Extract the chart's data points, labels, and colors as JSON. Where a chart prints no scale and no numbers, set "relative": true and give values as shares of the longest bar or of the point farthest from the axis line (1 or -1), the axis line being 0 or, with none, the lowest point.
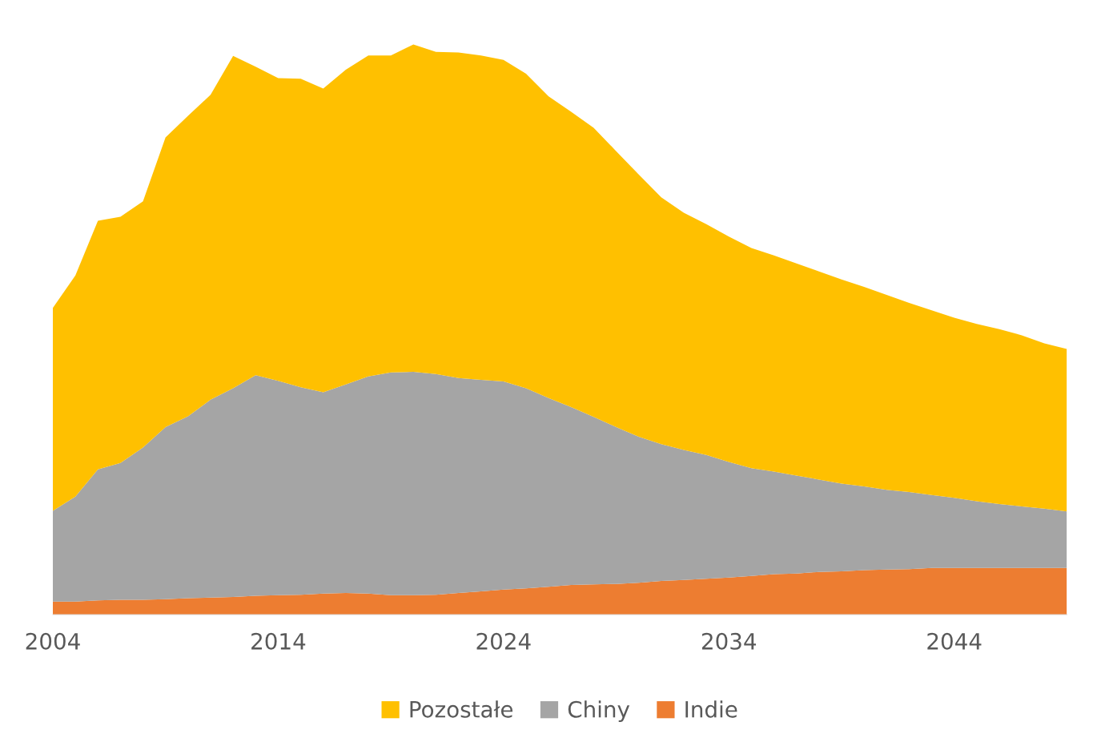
{
  "chart_data": {
    "type": "area",
    "stacked": true,
    "relative": true,
    "x": [
      2004,
      2005,
      2006,
      2007,
      2008,
      2009,
      2010,
      2011,
      2012,
      2013,
      2014,
      2015,
      2016,
      2017,
      2018,
      2019,
      2020,
      2021,
      2022,
      2023,
      2024,
      2025,
      2026,
      2027,
      2028,
      2029,
      2030,
      2031,
      2032,
      2033,
      2034,
      2035,
      2036,
      2037,
      2038,
      2039,
      2040,
      2041,
      2042,
      2043,
      2044,
      2045,
      2046,
      2047,
      2048,
      2049
    ],
    "xlim": [
      2004,
      2049
    ],
    "xticks": [
      2004,
      2014,
      2024,
      2034,
      2044
    ],
    "grid": false,
    "legend": "bottom",
    "series": [
      {
        "name": "Indie",
        "color": "#ed7d31",
        "values": [
          0.023,
          0.023,
          0.025,
          0.026,
          0.026,
          0.027,
          0.029,
          0.03,
          0.031,
          0.033,
          0.034,
          0.035,
          0.037,
          0.038,
          0.037,
          0.034,
          0.034,
          0.035,
          0.038,
          0.041,
          0.044,
          0.046,
          0.049,
          0.052,
          0.053,
          0.054,
          0.056,
          0.059,
          0.061,
          0.063,
          0.065,
          0.068,
          0.071,
          0.072,
          0.075,
          0.076,
          0.078,
          0.079,
          0.08,
          0.082,
          0.082,
          0.082,
          0.082,
          0.082,
          0.082,
          0.082
        ]
      },
      {
        "name": "Chiny",
        "color": "#a5a5a5",
        "values": [
          0.159,
          0.184,
          0.23,
          0.24,
          0.267,
          0.302,
          0.319,
          0.347,
          0.366,
          0.387,
          0.376,
          0.364,
          0.353,
          0.366,
          0.381,
          0.391,
          0.392,
          0.387,
          0.377,
          0.371,
          0.365,
          0.351,
          0.331,
          0.312,
          0.294,
          0.275,
          0.256,
          0.24,
          0.228,
          0.217,
          0.203,
          0.189,
          0.18,
          0.172,
          0.162,
          0.154,
          0.147,
          0.14,
          0.135,
          0.128,
          0.123,
          0.117,
          0.112,
          0.108,
          0.104,
          0.099
        ]
      },
      {
        "name": "Pozostałe",
        "color": "#ffc000",
        "values": [
          0.356,
          0.388,
          0.436,
          0.432,
          0.432,
          0.508,
          0.527,
          0.535,
          0.583,
          0.541,
          0.531,
          0.541,
          0.533,
          0.552,
          0.563,
          0.556,
          0.574,
          0.565,
          0.571,
          0.569,
          0.564,
          0.552,
          0.529,
          0.518,
          0.507,
          0.484,
          0.46,
          0.433,
          0.416,
          0.405,
          0.395,
          0.386,
          0.379,
          0.372,
          0.365,
          0.358,
          0.35,
          0.342,
          0.332,
          0.324,
          0.316,
          0.311,
          0.307,
          0.3,
          0.29,
          0.285
        ]
      }
    ]
  }
}
